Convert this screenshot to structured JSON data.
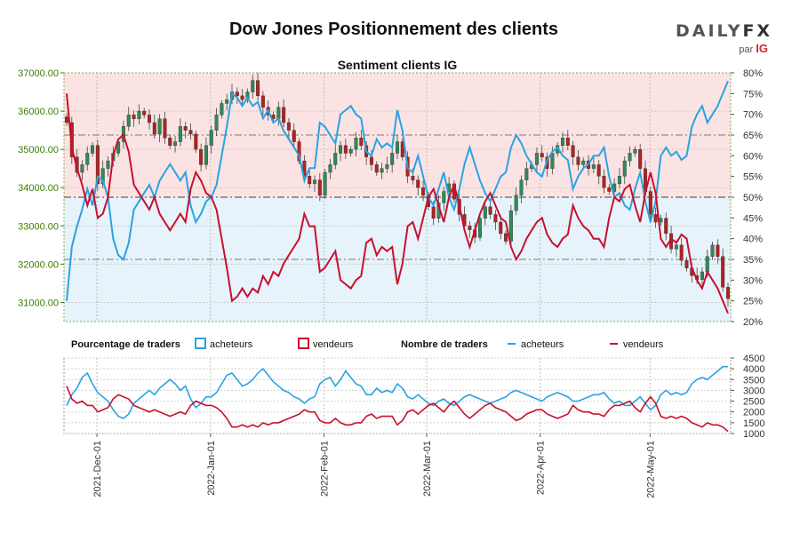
{
  "header": {
    "title": "Dow Jones Positionnement des clients",
    "logo_text": "DAILYFX",
    "logo_sub": "par",
    "logo_brand": "IG"
  },
  "colors": {
    "bull_candle": "#2e8b57",
    "bear_candle": "#b22222",
    "acheteurs": "#29a3e3",
    "vendeurs": "#c8102e",
    "upper_fill": "#fbe3e3",
    "lower_fill": "#e6f3fb",
    "left_axis_text": "#3a7d00"
  },
  "legend": {
    "pct_title": "Pourcentage de traders",
    "count_title": "Nombre de traders",
    "buyers": "acheteurs",
    "sellers": "vendeurs"
  },
  "chart_data": [
    {
      "type": "candlestick",
      "title": "Sentiment clients IG",
      "left_axis": {
        "label": "",
        "ylim": [
          30500,
          37000
        ],
        "ticks": [
          "37000.00",
          "36000.00",
          "35000.00",
          "34000.00",
          "33000.00",
          "32000.00",
          "31000.00"
        ]
      },
      "right_axis": {
        "label": "",
        "ylim": [
          20,
          80
        ],
        "ticks": [
          "80%",
          "75%",
          "70%",
          "65%",
          "60%",
          "55%",
          "50%",
          "45%",
          "40%",
          "35%",
          "30%",
          "25%",
          "20%"
        ]
      },
      "x_start": "2021-11-22",
      "x_end": "2022-05-23",
      "price_close": [
        35700,
        34800,
        34400,
        34600,
        34900,
        35100,
        34100,
        34500,
        34700,
        34900,
        35200,
        35600,
        35900,
        35800,
        36000,
        35900,
        35700,
        35400,
        35800,
        35300,
        35100,
        35200,
        35600,
        35500,
        35400,
        35000,
        34600,
        35100,
        35500,
        35900,
        36200,
        36300,
        36500,
        36400,
        36300,
        36500,
        36800,
        36400,
        36100,
        35900,
        35800,
        36100,
        35700,
        35500,
        35200,
        34700,
        34300,
        34100,
        34200,
        33800,
        34400,
        34600,
        34900,
        35100,
        34900,
        35000,
        35300,
        35100,
        34800,
        34600,
        34400,
        34500,
        34600,
        34900,
        35200,
        34800,
        34300,
        34200,
        34000,
        33800,
        33500,
        33200,
        33600,
        33900,
        34100,
        33700,
        33300,
        33000,
        32900,
        32700,
        33200,
        33500,
        33300,
        33100,
        32800,
        32600,
        33400,
        33800,
        34200,
        34500,
        34600,
        34900,
        34800,
        34500,
        34900,
        35100,
        35300,
        35100,
        34800,
        34600,
        34700,
        34500,
        34600,
        34300,
        34000,
        33900,
        34100,
        34300,
        34700,
        34900,
        35000,
        34500,
        33900,
        33300,
        33100,
        33200,
        32800,
        32400,
        32500,
        32100,
        31900,
        31700,
        31600,
        31800,
        32200,
        32500,
        32200,
        31400,
        31100
      ],
      "acheteurs_pct": [
        25,
        38,
        43,
        47,
        52,
        48,
        55,
        54,
        50,
        40,
        36,
        35,
        39,
        47,
        49,
        51,
        53,
        50,
        54,
        56,
        58,
        56,
        54,
        56,
        48,
        44,
        46,
        49,
        50,
        53,
        60,
        67,
        75,
        74,
        72,
        74,
        72,
        73,
        69,
        71,
        68,
        69,
        66,
        64,
        62,
        60,
        54,
        57,
        57,
        68,
        67,
        65,
        63,
        70,
        71,
        72,
        70,
        69,
        61,
        60,
        64,
        62,
        63,
        62,
        71,
        66,
        57,
        56,
        60,
        55,
        50,
        48,
        52,
        56,
        50,
        47,
        52,
        58,
        62,
        58,
        54,
        51,
        49,
        52,
        55,
        56,
        62,
        65,
        63,
        60,
        58,
        56,
        55,
        59,
        61,
        62,
        60,
        59,
        52,
        55,
        57,
        58,
        60,
        60,
        62,
        55,
        50,
        51,
        48,
        47,
        52,
        56,
        49,
        44,
        49,
        60,
        62,
        60,
        61,
        59,
        60,
        67,
        70,
        72,
        68,
        70,
        72,
        75,
        78
      ],
      "vendeurs_pct": [
        75,
        62,
        57,
        53,
        48,
        52,
        45,
        46,
        50,
        60,
        64,
        65,
        61,
        53,
        51,
        49,
        47,
        50,
        46,
        44,
        42,
        44,
        46,
        44,
        52,
        56,
        54,
        51,
        50,
        47,
        40,
        33,
        25,
        26,
        28,
        26,
        28,
        27,
        31,
        29,
        32,
        31,
        34,
        36,
        38,
        40,
        46,
        43,
        43,
        32,
        33,
        35,
        37,
        30,
        29,
        28,
        30,
        31,
        39,
        40,
        36,
        38,
        37,
        38,
        29,
        34,
        43,
        44,
        40,
        45,
        50,
        52,
        48,
        44,
        50,
        53,
        48,
        42,
        38,
        42,
        46,
        49,
        51,
        48,
        45,
        44,
        38,
        35,
        37,
        40,
        42,
        44,
        45,
        41,
        39,
        38,
        40,
        41,
        48,
        45,
        43,
        42,
        40,
        40,
        38,
        45,
        50,
        49,
        52,
        53,
        48,
        44,
        51,
        56,
        51,
        40,
        38,
        40,
        39,
        41,
        40,
        33,
        30,
        28,
        32,
        30,
        28,
        25,
        22
      ],
      "sentiment_levels": [
        65,
        50,
        35
      ]
    },
    {
      "type": "line",
      "title": "Nombre de traders",
      "right_axis": {
        "ylim": [
          1000,
          4500
        ],
        "ticks": [
          "4500",
          "4000",
          "3500",
          "3000",
          "2500",
          "2000",
          "1500",
          "1000"
        ]
      },
      "x_tick_labels": [
        "2021-Dec-01",
        "2022-Jan-01",
        "2022-Feb-01",
        "2022-Mar-01",
        "2022-Apr-01",
        "2022-May-01"
      ],
      "x_tick_dates": [
        "2021-12-01",
        "2022-01-01",
        "2022-02-01",
        "2022-03-01",
        "2022-04-01",
        "2022-05-01"
      ],
      "acheteurs_count": [
        2300,
        2800,
        3100,
        3600,
        3800,
        3300,
        2900,
        2700,
        2500,
        2100,
        1800,
        1700,
        1900,
        2400,
        2600,
        2800,
        3000,
        2800,
        3100,
        3300,
        3500,
        3300,
        3000,
        3200,
        2600,
        2200,
        2400,
        2700,
        2700,
        2900,
        3300,
        3700,
        3800,
        3500,
        3200,
        3300,
        3500,
        3800,
        4000,
        3700,
        3400,
        3200,
        3000,
        2900,
        2700,
        2600,
        2400,
        2600,
        2700,
        3300,
        3500,
        3600,
        3200,
        3500,
        3900,
        3600,
        3300,
        3200,
        2800,
        2800,
        3100,
        2900,
        3000,
        2900,
        3300,
        3100,
        2700,
        2600,
        2800,
        2600,
        2400,
        2300,
        2500,
        2600,
        2400,
        2300,
        2500,
        2700,
        2800,
        2700,
        2600,
        2500,
        2400,
        2500,
        2600,
        2700,
        2900,
        3000,
        2900,
        2800,
        2700,
        2600,
        2500,
        2700,
        2800,
        2900,
        2800,
        2700,
        2500,
        2500,
        2600,
        2700,
        2800,
        2800,
        2900,
        2600,
        2400,
        2500,
        2300,
        2300,
        2500,
        2700,
        2400,
        2100,
        2300,
        2800,
        3000,
        2800,
        2900,
        2800,
        2900,
        3300,
        3500,
        3600,
        3500,
        3700,
        3900,
        4100,
        4100
      ],
      "vendeurs_count": [
        3200,
        2600,
        2400,
        2500,
        2300,
        2300,
        2000,
        2100,
        2200,
        2600,
        2800,
        2700,
        2600,
        2300,
        2200,
        2100,
        2000,
        2100,
        2000,
        1900,
        1800,
        1900,
        2000,
        1900,
        2300,
        2500,
        2400,
        2300,
        2300,
        2200,
        2000,
        1700,
        1300,
        1300,
        1400,
        1300,
        1400,
        1300,
        1500,
        1400,
        1500,
        1500,
        1600,
        1700,
        1800,
        1900,
        2100,
        2000,
        2000,
        1600,
        1500,
        1500,
        1700,
        1500,
        1400,
        1400,
        1500,
        1500,
        1800,
        1900,
        1700,
        1800,
        1800,
        1800,
        1400,
        1600,
        2000,
        2100,
        1900,
        2100,
        2300,
        2400,
        2200,
        2000,
        2300,
        2500,
        2200,
        1900,
        1700,
        1900,
        2100,
        2300,
        2400,
        2200,
        2100,
        2000,
        1800,
        1600,
        1700,
        1900,
        2000,
        2100,
        2100,
        1900,
        1800,
        1700,
        1800,
        1900,
        2300,
        2100,
        2000,
        2000,
        1900,
        1900,
        1800,
        2100,
        2300,
        2300,
        2400,
        2500,
        2200,
        2000,
        2400,
        2700,
        2400,
        1800,
        1700,
        1800,
        1700,
        1800,
        1700,
        1500,
        1400,
        1300,
        1500,
        1400,
        1400,
        1300,
        1100
      ]
    }
  ]
}
